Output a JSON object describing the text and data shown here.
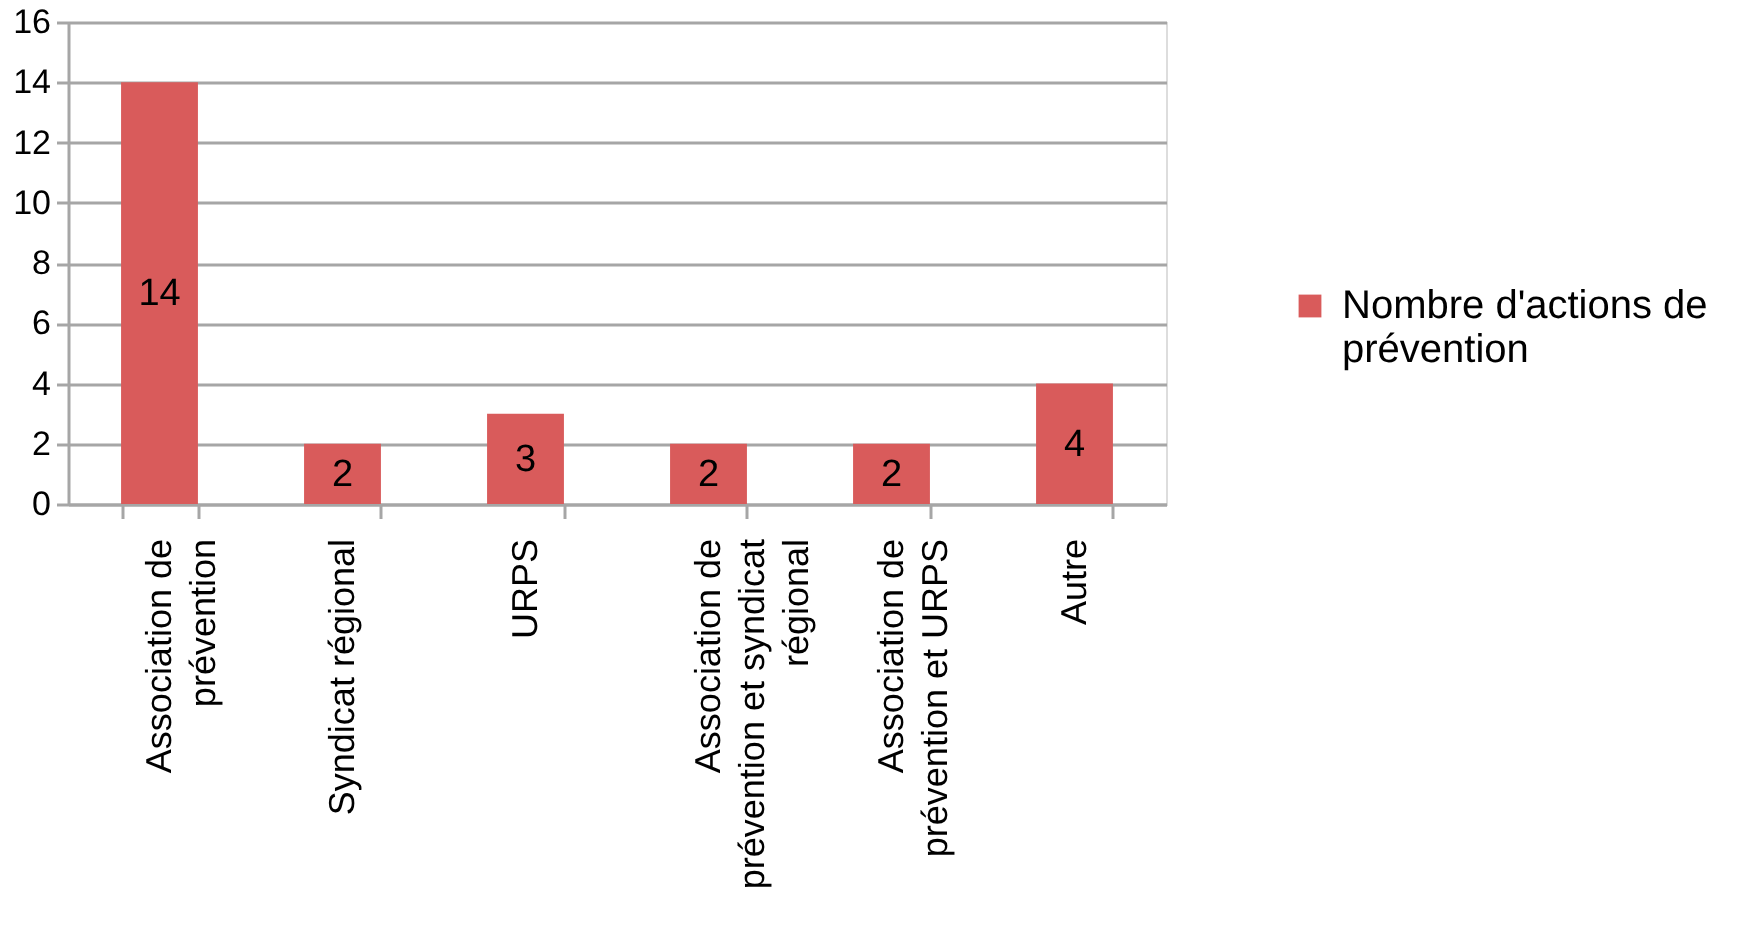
{
  "chart_data": {
    "type": "bar",
    "categories": [
      "Association de prévention",
      "Syndicat régional",
      "URPS",
      "Association de prévention et syndicat régional",
      "Association de prévention et URPS",
      "Autre"
    ],
    "series": [
      {
        "name": "Nombre d'actions de prévention",
        "color": "#d95b5b",
        "values": [
          14,
          2,
          3,
          2,
          2,
          4
        ]
      }
    ],
    "ylim": [
      0,
      16
    ],
    "yticks": [
      0,
      2,
      4,
      6,
      8,
      10,
      12,
      14,
      16
    ],
    "grid": "y",
    "legend": "right",
    "data_labels": true
  }
}
